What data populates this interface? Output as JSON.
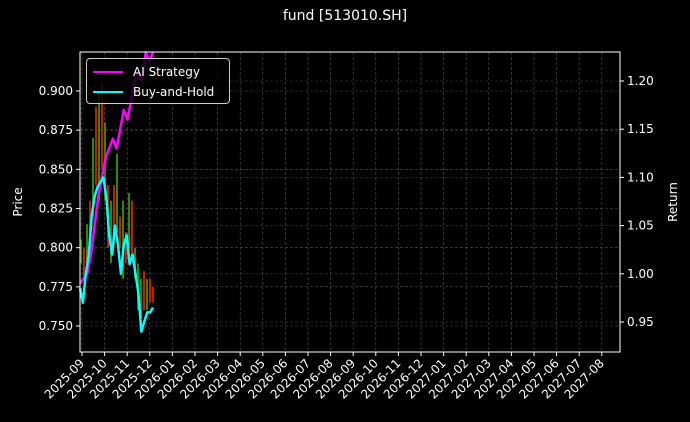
{
  "title": "fund [513010.SH]",
  "chart_data": {
    "type": "line",
    "title": "fund [513010.SH]",
    "xlabel": "",
    "ylabel": "Price",
    "ylabel_right": "Return",
    "ylim": [
      0.735,
      0.925
    ],
    "ylim_right": [
      0.92,
      1.225
    ],
    "yticks": [
      "0.750",
      "0.775",
      "0.800",
      "0.825",
      "0.850",
      "0.875",
      "0.900"
    ],
    "yticks_right": [
      "0.95",
      "1.00",
      "1.05",
      "1.10",
      "1.15",
      "1.20"
    ],
    "xticks": [
      "2025-09",
      "2025-10",
      "2025-11",
      "2025-12",
      "2026-01",
      "2026-02",
      "2026-03",
      "2026-04",
      "2026-05",
      "2026-06",
      "2026-07",
      "2026-08",
      "2026-09",
      "2026-10",
      "2026-11",
      "2026-12",
      "2027-01",
      "2027-02",
      "2027-03",
      "2027-04",
      "2027-05",
      "2027-06",
      "2027-07",
      "2027-08"
    ],
    "grid": true,
    "legend_position": "upper left",
    "series": [
      {
        "name": "AI Strategy",
        "color": "#ff00ff",
        "axis": "right",
        "x_frac": [
          0.0,
          0.05,
          0.1,
          0.15,
          0.2,
          0.25,
          0.3,
          0.35,
          0.4,
          0.45,
          0.5,
          0.55,
          0.6,
          0.65,
          0.7,
          0.75,
          0.8,
          0.85,
          0.9,
          0.95,
          1.0
        ],
        "values": [
          0.99,
          0.995,
          1.0,
          1.02,
          1.05,
          1.08,
          1.1,
          1.12,
          1.13,
          1.14,
          1.13,
          1.15,
          1.17,
          1.16,
          1.18,
          1.2,
          1.21,
          1.2,
          1.23,
          1.22,
          1.24
        ]
      },
      {
        "name": "Buy-and-Hold",
        "color": "#00ffff",
        "axis": "right",
        "x_frac": [
          0.0,
          0.04,
          0.08,
          0.12,
          0.16,
          0.2,
          0.24,
          0.28,
          0.32,
          0.36,
          0.4,
          0.44,
          0.48,
          0.52,
          0.56,
          0.6,
          0.64,
          0.68,
          0.72,
          0.76,
          0.8,
          0.84,
          0.88,
          0.92,
          0.96,
          1.0
        ],
        "values": [
          0.985,
          0.97,
          1.0,
          1.02,
          1.06,
          1.08,
          1.09,
          1.095,
          1.1,
          1.08,
          1.04,
          1.02,
          1.05,
          1.03,
          1.0,
          1.03,
          1.04,
          1.01,
          1.02,
          1.0,
          0.98,
          0.94,
          0.95,
          0.96,
          0.96,
          0.965
        ]
      }
    ],
    "candles_note": "Red/green price candlesticks on left axis from 2025-09 to ~2025-12, range ~0.75-0.90"
  },
  "legend": {
    "items": [
      {
        "label": "AI Strategy",
        "color": "#ff00ff"
      },
      {
        "label": "Buy-and-Hold",
        "color": "#00ffff"
      }
    ]
  },
  "axes": {
    "left_label": "Price",
    "right_label": "Return"
  }
}
